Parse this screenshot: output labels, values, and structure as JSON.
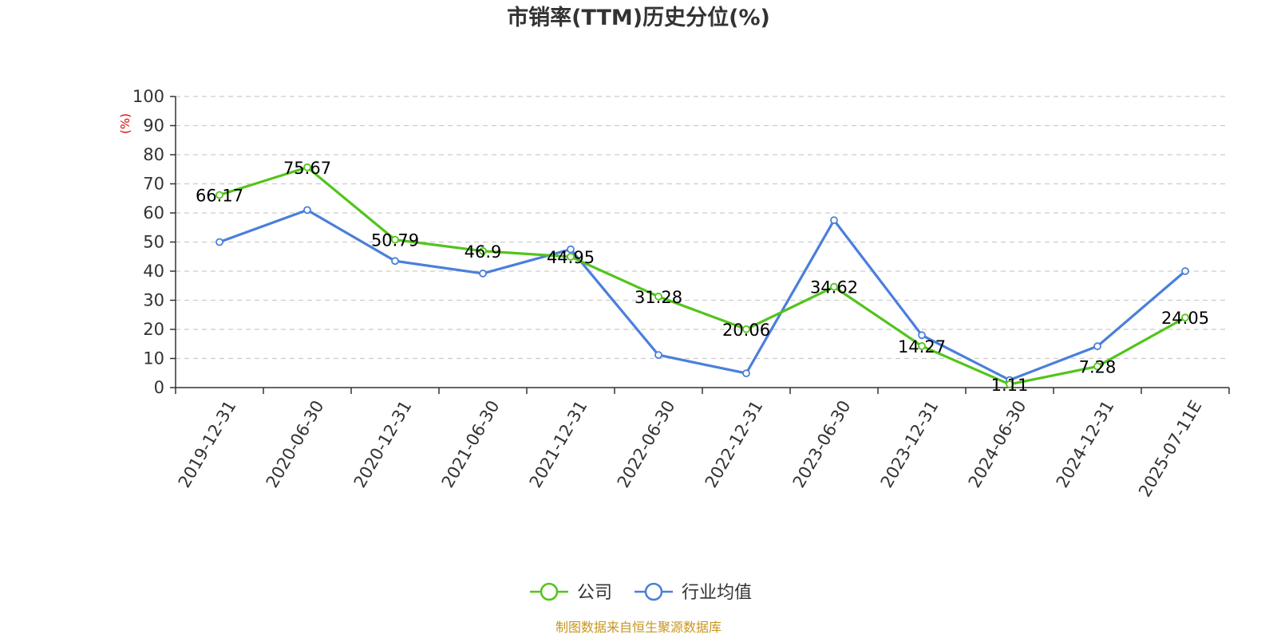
{
  "chart_data": {
    "type": "line",
    "title": "市销率(TTM)历史分位(%)",
    "ylabel": "(%)",
    "ylim": [
      0,
      100
    ],
    "yticks": [
      0,
      10,
      20,
      30,
      40,
      50,
      60,
      70,
      80,
      90,
      100
    ],
    "grid": true,
    "legend_position": "bottom",
    "categories": [
      "2019-12-31",
      "2020-06-30",
      "2020-12-31",
      "2021-06-30",
      "2021-12-31",
      "2022-06-30",
      "2022-12-31",
      "2023-06-30",
      "2023-12-31",
      "2024-06-30",
      "2024-12-31",
      "2025-07-11E"
    ],
    "series": [
      {
        "name": "公司",
        "color": "#52c41a",
        "values": [
          66.17,
          75.67,
          50.79,
          46.9,
          44.95,
          31.28,
          20.06,
          34.62,
          14.27,
          1.11,
          7.28,
          24.05
        ],
        "labels": [
          "66.17",
          "75.67",
          "50.79",
          "46.9",
          "44.95",
          "31.28",
          "20.06",
          "34.62",
          "14.27",
          "1.11",
          "7.28",
          "24.05"
        ],
        "show_labels": true
      },
      {
        "name": "行业均值",
        "color": "#4a7fdb",
        "values": [
          50.0,
          61.0,
          43.5,
          39.2,
          47.5,
          11.2,
          4.9,
          57.5,
          18.0,
          2.6,
          14.2,
          40.0
        ],
        "show_labels": false
      }
    ]
  },
  "footer": {
    "source": "制图数据来自恒生聚源数据库",
    "source_color": "#c8961e"
  },
  "colors": {
    "axis": "#333333",
    "grid": "#cccccc",
    "ylabel": "#e00000"
  }
}
